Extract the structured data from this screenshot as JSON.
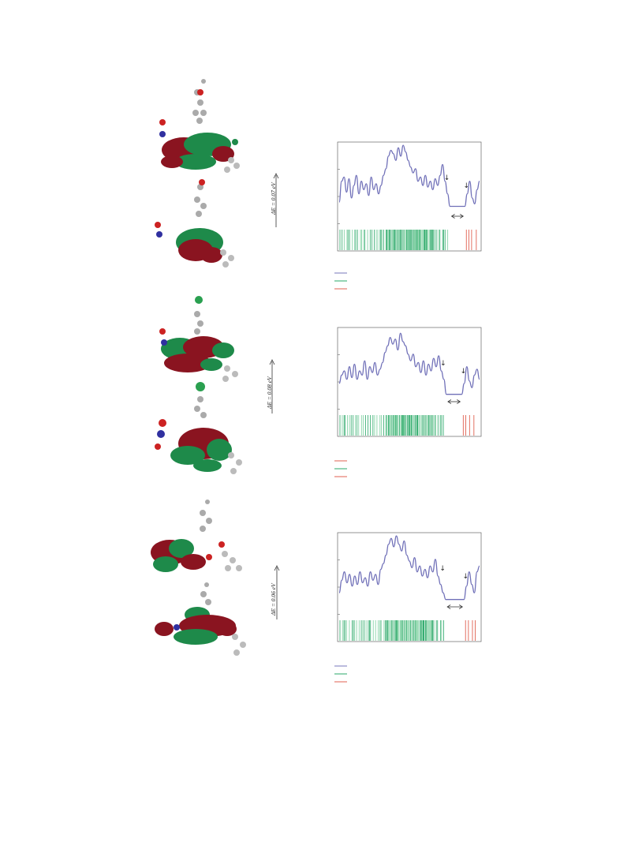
{
  "panels": [
    {
      "id": "a",
      "energy_gap_label": "ΔE = 0.07 eV",
      "legend_colors": [
        "#7777bb",
        "#2aa868",
        "#e06050"
      ],
      "chart_data": {
        "type": "line",
        "xlabel": "",
        "ylabel": "",
        "series": [
          {
            "values": [
              0.3,
              0.55,
              0.6,
              0.42,
              0.58,
              0.35,
              0.5,
              0.62,
              0.4,
              0.55,
              0.45,
              0.52,
              0.38,
              0.6,
              0.45,
              0.52,
              0.4,
              0.5,
              0.62,
              0.7,
              0.85,
              0.92,
              0.88,
              0.8,
              0.95,
              0.85,
              0.98,
              0.9,
              0.8,
              0.72,
              0.65,
              0.7,
              0.55,
              0.6,
              0.5,
              0.62,
              0.48,
              0.55,
              0.45,
              0.58,
              0.5,
              0.62,
              0.75,
              0.55,
              0.4,
              0.25,
              0.25,
              0.25,
              0.25,
              0.25,
              0.25,
              0.25,
              0.4,
              0.55,
              0.35,
              0.28,
              0.45,
              0.55
            ]
          }
        ],
        "markers": [
          "↓",
          "↓"
        ],
        "gap_arrow": "↔"
      }
    },
    {
      "id": "b",
      "energy_gap_label": "ΔE = 0.08 eV",
      "legend_colors": [
        "#e06050",
        "#2aa868",
        "#e06050"
      ],
      "chart_data": {
        "type": "line",
        "xlabel": "",
        "ylabel": "",
        "series": [
          {
            "values": [
              0.35,
              0.45,
              0.5,
              0.4,
              0.55,
              0.42,
              0.58,
              0.4,
              0.5,
              0.45,
              0.62,
              0.4,
              0.55,
              0.48,
              0.6,
              0.45,
              0.52,
              0.6,
              0.72,
              0.8,
              0.9,
              0.82,
              0.88,
              0.75,
              0.95,
              0.85,
              0.8,
              0.7,
              0.62,
              0.7,
              0.55,
              0.6,
              0.48,
              0.62,
              0.45,
              0.58,
              0.5,
              0.65,
              0.55,
              0.68,
              0.5,
              0.4,
              0.22,
              0.22,
              0.22,
              0.22,
              0.22,
              0.22,
              0.22,
              0.35,
              0.55,
              0.38,
              0.3,
              0.45,
              0.52,
              0.4
            ]
          }
        ],
        "markers": [
          "↓",
          "↓"
        ],
        "gap_arrow": "↔"
      }
    },
    {
      "id": "c",
      "energy_gap_label": "ΔE = 0.06 eV",
      "legend_colors": [
        "#7777bb",
        "#2aa868",
        "#e06050"
      ],
      "chart_data": {
        "type": "line",
        "xlabel": "",
        "ylabel": "",
        "series": [
          {
            "values": [
              0.3,
              0.45,
              0.55,
              0.42,
              0.52,
              0.38,
              0.5,
              0.4,
              0.55,
              0.42,
              0.48,
              0.38,
              0.55,
              0.45,
              0.52,
              0.4,
              0.58,
              0.65,
              0.75,
              0.88,
              0.95,
              0.85,
              0.98,
              0.88,
              0.8,
              0.92,
              0.75,
              0.68,
              0.6,
              0.72,
              0.55,
              0.62,
              0.5,
              0.58,
              0.48,
              0.62,
              0.55,
              0.7,
              0.5,
              0.4,
              0.3,
              0.22,
              0.22,
              0.22,
              0.22,
              0.22,
              0.22,
              0.22,
              0.22,
              0.38,
              0.55,
              0.4,
              0.3,
              0.55,
              0.62
            ]
          }
        ],
        "markers": [
          "↓",
          "↓"
        ],
        "gap_arrow": "↔"
      }
    }
  ]
}
